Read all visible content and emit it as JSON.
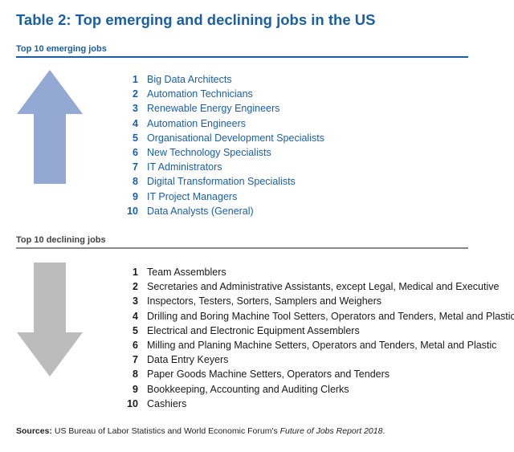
{
  "title": "Table 2: Top emerging and declining jobs in the US",
  "colors": {
    "heading_blue": "#1a5fa5",
    "arrow_up": "#93a8d3",
    "arrow_down": "#bcbcbc",
    "declining_rule": "#8a8a8a"
  },
  "emerging": {
    "label": "Top 10 emerging jobs",
    "icon": "arrow-up-icon",
    "items": [
      {
        "rank": "1",
        "job": "Big Data Architects"
      },
      {
        "rank": "2",
        "job": "Automation Technicians"
      },
      {
        "rank": "3",
        "job": "Renewable Energy Engineers"
      },
      {
        "rank": "4",
        "job": "Automation Engineers"
      },
      {
        "rank": "5",
        "job": "Organisational Development Specialists"
      },
      {
        "rank": "6",
        "job": "New Technology Specialists"
      },
      {
        "rank": "7",
        "job": "IT Administrators"
      },
      {
        "rank": "8",
        "job": "Digital Transformation Specialists"
      },
      {
        "rank": "9",
        "job": "IT Project Managers"
      },
      {
        "rank": "10",
        "job": "Data Analysts (General)"
      }
    ]
  },
  "declining": {
    "label": "Top 10 declining jobs",
    "icon": "arrow-down-icon",
    "items": [
      {
        "rank": "1",
        "job": "Team Assemblers"
      },
      {
        "rank": "2",
        "job": "Secretaries and Administrative Assistants, except Legal, Medical and Executive"
      },
      {
        "rank": "3",
        "job": "Inspectors, Testers, Sorters, Samplers and Weighers"
      },
      {
        "rank": "4",
        "job": "Drilling and Boring Machine Tool Setters, Operators and Tenders, Metal and Plastic"
      },
      {
        "rank": "5",
        "job": "Electrical and Electronic Equipment Assemblers"
      },
      {
        "rank": "6",
        "job": "Milling and Planing Machine Setters, Operators and Tenders, Metal and Plastic"
      },
      {
        "rank": "7",
        "job": "Data Entry Keyers"
      },
      {
        "rank": "8",
        "job": "Paper Goods Machine Setters, Operators and Tenders"
      },
      {
        "rank": "9",
        "job": "Bookkeeping, Accounting and Auditing Clerks"
      },
      {
        "rank": "10",
        "job": "Cashiers"
      }
    ]
  },
  "sources": {
    "label": "Sources:",
    "text": " US Bureau of Labor Statistics and World Economic Forum's ",
    "report": "Future of Jobs Report 2018",
    "end": "."
  }
}
